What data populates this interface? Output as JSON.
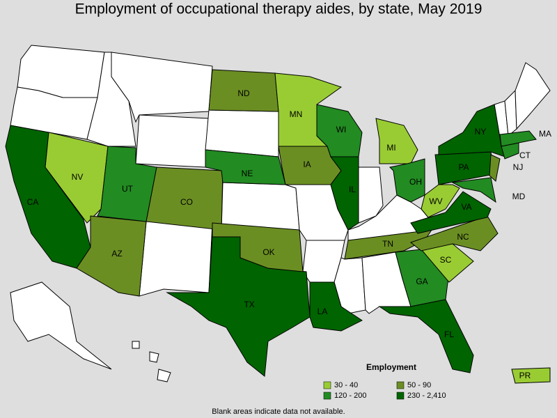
{
  "title": "Employment of occupational therapy aides, by state, May 2019",
  "legend": {
    "title": "Employment",
    "items": [
      {
        "label": "30 - 40",
        "color": "#99cc33"
      },
      {
        "label": "50 - 90",
        "color": "#6b8e23"
      },
      {
        "label": "120 - 200",
        "color": "#228b22"
      },
      {
        "label": "230 - 2,410",
        "color": "#006400"
      }
    ]
  },
  "states": [
    {
      "label": "CA",
      "color": "#006400"
    },
    {
      "label": "NV",
      "color": "#99cc33"
    },
    {
      "label": "AZ",
      "color": "#6b8e23"
    },
    {
      "label": "UT",
      "color": "#228b22"
    },
    {
      "label": "CO",
      "color": "#6b8e23"
    },
    {
      "label": "NE",
      "color": "#228b22"
    },
    {
      "label": "ND",
      "color": "#6b8e23"
    },
    {
      "label": "MN",
      "color": "#99cc33"
    },
    {
      "label": "WI",
      "color": "#228b22"
    },
    {
      "label": "MI",
      "color": "#99cc33"
    },
    {
      "label": "IA",
      "color": "#6b8e23"
    },
    {
      "label": "IL",
      "color": "#006400"
    },
    {
      "label": "OH",
      "color": "#228b22"
    },
    {
      "label": "TX",
      "color": "#006400"
    },
    {
      "label": "OK",
      "color": "#6b8e23"
    },
    {
      "label": "LA",
      "color": "#006400"
    },
    {
      "label": "TN",
      "color": "#6b8e23"
    },
    {
      "label": "GA",
      "color": "#228b22"
    },
    {
      "label": "FL",
      "color": "#006400"
    },
    {
      "label": "SC",
      "color": "#99cc33"
    },
    {
      "label": "NC",
      "color": "#6b8e23"
    },
    {
      "label": "VA",
      "color": "#006400"
    },
    {
      "label": "WV",
      "color": "#99cc33"
    },
    {
      "label": "PA",
      "color": "#006400"
    },
    {
      "label": "NY",
      "color": "#006400"
    },
    {
      "label": "NJ",
      "color": "#6b8e23"
    },
    {
      "label": "MD",
      "color": "#228b22"
    },
    {
      "label": "CT",
      "color": "#228b22"
    },
    {
      "label": "MA",
      "color": "#228b22"
    },
    {
      "label": "PR",
      "color": "#99cc33"
    }
  ],
  "note": "Blank areas indicate data not available."
}
